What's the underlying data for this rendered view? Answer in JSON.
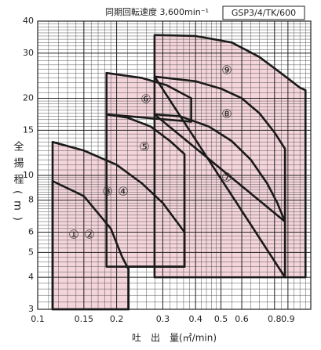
{
  "chart_data": {
    "type": "region",
    "title": "同期回転速度 3,600min⁻¹",
    "model": "GSP3/4/TK/600",
    "x_label": "吐　出　量(㎥/min)",
    "y_label": "全揚程(m)",
    "log_x": true,
    "log_y": true,
    "fill": "#f5d5dc",
    "stroke": "#1a1a1a",
    "xlim": [
      0.1,
      1.1
    ],
    "ylim": [
      3,
      40
    ],
    "xticks": [
      0.1,
      0.15,
      0.2,
      0.3,
      0.4,
      0.5,
      0.6,
      0.8,
      0.9
    ],
    "yticks": [
      3,
      4,
      5,
      6,
      8,
      10,
      15,
      20,
      30,
      40
    ],
    "xgrid": [
      0.11,
      0.12,
      0.13,
      0.14,
      0.16,
      0.17,
      0.18,
      0.19,
      0.22,
      0.24,
      0.26,
      0.28,
      0.32,
      0.34,
      0.36,
      0.38,
      0.42,
      0.44,
      0.46,
      0.48,
      0.55,
      0.65,
      0.7,
      0.75,
      0.85,
      0.95,
      1.0,
      1.05
    ],
    "ygrid": [
      3.2,
      3.4,
      3.6,
      3.8,
      4.2,
      4.4,
      4.6,
      4.8,
      5.2,
      5.4,
      5.6,
      5.8,
      6.2,
      6.4,
      6.6,
      6.8,
      7,
      7.2,
      7.4,
      7.6,
      7.8,
      8.2,
      8.4,
      8.6,
      8.8,
      9,
      9.2,
      9.4,
      9.6,
      9.8,
      10.5,
      11,
      11.5,
      12,
      12.5,
      13,
      13.5,
      14,
      14.5,
      15.5,
      16,
      16.5,
      17,
      17.5,
      18,
      18.5,
      19,
      19.5,
      21,
      22,
      23,
      24,
      25,
      26,
      27,
      28,
      29,
      31,
      32,
      33,
      34,
      35,
      36,
      37,
      38,
      39
    ],
    "regions": [
      {
        "labels": [
          "⑨"
        ],
        "x": [
          0.279,
          0.279,
          0.4,
          0.55,
          0.7,
          0.85,
          1.0,
          1.05,
          1.05,
          0.877
        ],
        "y": [
          24.3,
          35.3,
          35,
          33,
          29,
          25,
          22,
          21.5,
          4,
          4
        ]
      },
      {
        "labels": [
          "⑧"
        ],
        "x": [
          0.279,
          0.279,
          0.4,
          0.5,
          0.6,
          0.7,
          0.8,
          0.877,
          0.877
        ],
        "y": [
          17.3,
          24.3,
          23.3,
          21.8,
          20,
          17.5,
          14.7,
          12.7,
          6.6
        ]
      },
      {
        "labels": [
          "⑦"
        ],
        "x": [
          0.279,
          0.279,
          0.35,
          0.45,
          0.55,
          0.65,
          0.75,
          0.82,
          0.877,
          0.877
        ],
        "y": [
          4,
          17.3,
          17,
          15.5,
          13.6,
          11.5,
          9.3,
          7.8,
          6.6,
          4
        ]
      },
      {
        "labels": [
          "⑥"
        ],
        "x": [
          0.183,
          0.183,
          0.25,
          0.31,
          0.385,
          0.385
        ],
        "y": [
          17.3,
          25.1,
          24,
          22.5,
          20,
          16.2
        ]
      },
      {
        "labels": [
          "⑤"
        ],
        "x": [
          0.183,
          0.183,
          0.22,
          0.27,
          0.32,
          0.363,
          0.363
        ],
        "y": [
          4.4,
          17.3,
          16.8,
          15.5,
          13.6,
          12.1,
          4.4
        ]
      },
      {
        "labels": [
          "③",
          "④"
        ],
        "x": [
          0.114,
          0.114,
          0.15,
          0.2,
          0.25,
          0.3,
          0.363,
          0.363,
          0.222,
          0.222
        ],
        "y": [
          3,
          13.5,
          12.5,
          11,
          9.3,
          7.8,
          6,
          4.4,
          4.4,
          3
        ]
      },
      {
        "labels": [
          "①",
          "②"
        ],
        "x": [
          0.114,
          0.114,
          0.15,
          0.19,
          0.21,
          0.222,
          0.222
        ],
        "y": [
          3,
          9.5,
          8.3,
          6.2,
          4.8,
          4.3,
          3
        ]
      }
    ]
  }
}
